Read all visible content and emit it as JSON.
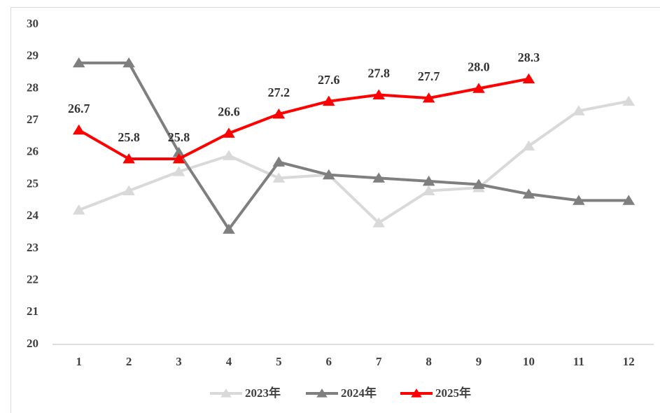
{
  "chart_data": {
    "type": "line",
    "categories": [
      "1",
      "2",
      "3",
      "4",
      "5",
      "6",
      "7",
      "8",
      "9",
      "10",
      "11",
      "12"
    ],
    "series": [
      {
        "name": "2023年",
        "color": "#d9d9d9",
        "values": [
          24.2,
          24.8,
          25.4,
          25.9,
          25.2,
          25.3,
          23.8,
          24.8,
          24.9,
          26.2,
          27.3,
          27.6
        ]
      },
      {
        "name": "2024年",
        "color": "#7f7f7f",
        "values": [
          28.8,
          28.8,
          26.0,
          23.6,
          25.7,
          25.3,
          25.2,
          25.1,
          25.0,
          24.7,
          24.5,
          24.5
        ]
      },
      {
        "name": "2025年",
        "color": "#ff0000",
        "values": [
          26.7,
          25.8,
          25.8,
          26.6,
          27.2,
          27.6,
          27.8,
          27.7,
          28.0,
          28.3,
          null,
          null
        ],
        "value_labels": [
          "26.7",
          "25.8",
          "25.8",
          "26.6",
          "27.2",
          "27.6",
          "27.8",
          "27.7",
          "28.0",
          "28.3",
          null,
          null
        ]
      }
    ],
    "ylim": [
      20,
      30
    ],
    "yticks": [
      20,
      21,
      22,
      23,
      24,
      25,
      26,
      27,
      28,
      29,
      30
    ],
    "grid": false,
    "legend": "bottom"
  }
}
